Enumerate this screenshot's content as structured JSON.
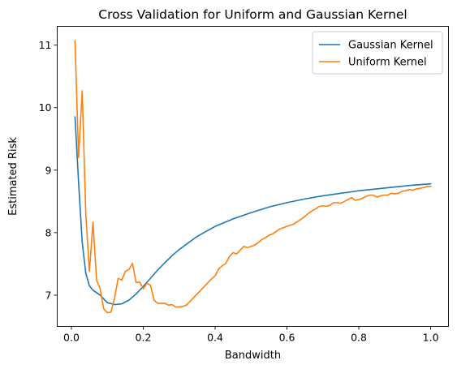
{
  "chart_data": {
    "type": "line",
    "title": "Cross Validation for Uniform and Gaussian Kernel",
    "xlabel": "Bandwidth",
    "ylabel": "Estimated Risk",
    "xlim": [
      -0.0395,
      1.0495
    ],
    "ylim": [
      6.5,
      11.3
    ],
    "xticks": [
      0.0,
      0.2,
      0.4,
      0.6,
      0.8,
      1.0
    ],
    "xtick_labels": [
      "0.0",
      "0.2",
      "0.4",
      "0.6",
      "0.8",
      "1.0"
    ],
    "yticks": [
      7,
      8,
      9,
      10,
      11
    ],
    "ytick_labels": [
      "7",
      "8",
      "9",
      "10",
      "11"
    ],
    "grid": false,
    "legend_position": "top-right",
    "series": [
      {
        "name": "Gaussian Kernel",
        "color": "#1f77b4",
        "x": [
          0.01,
          0.02,
          0.03,
          0.04,
          0.05,
          0.06,
          0.08,
          0.1,
          0.12,
          0.14,
          0.16,
          0.18,
          0.2,
          0.22,
          0.24,
          0.26,
          0.28,
          0.3,
          0.35,
          0.4,
          0.45,
          0.5,
          0.55,
          0.6,
          0.65,
          0.7,
          0.75,
          0.8,
          0.85,
          0.9,
          0.95,
          1.0
        ],
        "y": [
          9.85,
          8.8,
          7.85,
          7.35,
          7.15,
          7.08,
          7.0,
          6.88,
          6.85,
          6.86,
          6.92,
          7.02,
          7.14,
          7.27,
          7.4,
          7.52,
          7.63,
          7.73,
          7.94,
          8.1,
          8.22,
          8.32,
          8.41,
          8.48,
          8.54,
          8.59,
          8.63,
          8.67,
          8.7,
          8.73,
          8.76,
          8.78
        ]
      },
      {
        "name": "Uniform Kernel",
        "color": "#ff7f0e",
        "x": [
          0.01,
          0.02,
          0.03,
          0.04,
          0.05,
          0.06,
          0.07,
          0.08,
          0.09,
          0.1,
          0.11,
          0.12,
          0.13,
          0.14,
          0.15,
          0.16,
          0.17,
          0.18,
          0.19,
          0.2,
          0.21,
          0.22,
          0.23,
          0.24,
          0.25,
          0.26,
          0.27,
          0.28,
          0.29,
          0.3,
          0.31,
          0.32,
          0.33,
          0.34,
          0.35,
          0.36,
          0.37,
          0.38,
          0.39,
          0.4,
          0.41,
          0.42,
          0.43,
          0.44,
          0.45,
          0.46,
          0.47,
          0.48,
          0.49,
          0.5,
          0.51,
          0.52,
          0.53,
          0.54,
          0.55,
          0.56,
          0.57,
          0.58,
          0.59,
          0.6,
          0.61,
          0.62,
          0.63,
          0.64,
          0.65,
          0.66,
          0.67,
          0.68,
          0.69,
          0.7,
          0.71,
          0.72,
          0.73,
          0.74,
          0.75,
          0.76,
          0.77,
          0.78,
          0.79,
          0.8,
          0.81,
          0.82,
          0.83,
          0.84,
          0.85,
          0.86,
          0.87,
          0.88,
          0.89,
          0.9,
          0.91,
          0.92,
          0.93,
          0.94,
          0.95,
          0.96,
          0.97,
          0.98,
          0.99,
          1.0
        ],
        "y": [
          11.07,
          9.2,
          10.27,
          8.3,
          7.38,
          8.17,
          7.24,
          7.1,
          6.78,
          6.72,
          6.73,
          6.95,
          7.27,
          7.24,
          7.38,
          7.41,
          7.51,
          7.2,
          7.21,
          7.1,
          7.19,
          7.16,
          6.92,
          6.87,
          6.87,
          6.87,
          6.84,
          6.85,
          6.81,
          6.81,
          6.82,
          6.84,
          6.9,
          6.96,
          7.02,
          7.08,
          7.14,
          7.2,
          7.26,
          7.31,
          7.42,
          7.47,
          7.51,
          7.62,
          7.68,
          7.66,
          7.72,
          7.78,
          7.76,
          7.78,
          7.8,
          7.84,
          7.89,
          7.92,
          7.96,
          7.98,
          8.02,
          8.06,
          8.08,
          8.1,
          8.12,
          8.14,
          8.18,
          8.22,
          8.26,
          8.31,
          8.35,
          8.38,
          8.42,
          8.43,
          8.42,
          8.44,
          8.48,
          8.48,
          8.47,
          8.5,
          8.53,
          8.56,
          8.52,
          8.53,
          8.55,
          8.58,
          8.6,
          8.6,
          8.57,
          8.59,
          8.6,
          8.6,
          8.63,
          8.62,
          8.63,
          8.66,
          8.67,
          8.69,
          8.68,
          8.7,
          8.71,
          8.72,
          8.74,
          8.74
        ]
      }
    ]
  }
}
